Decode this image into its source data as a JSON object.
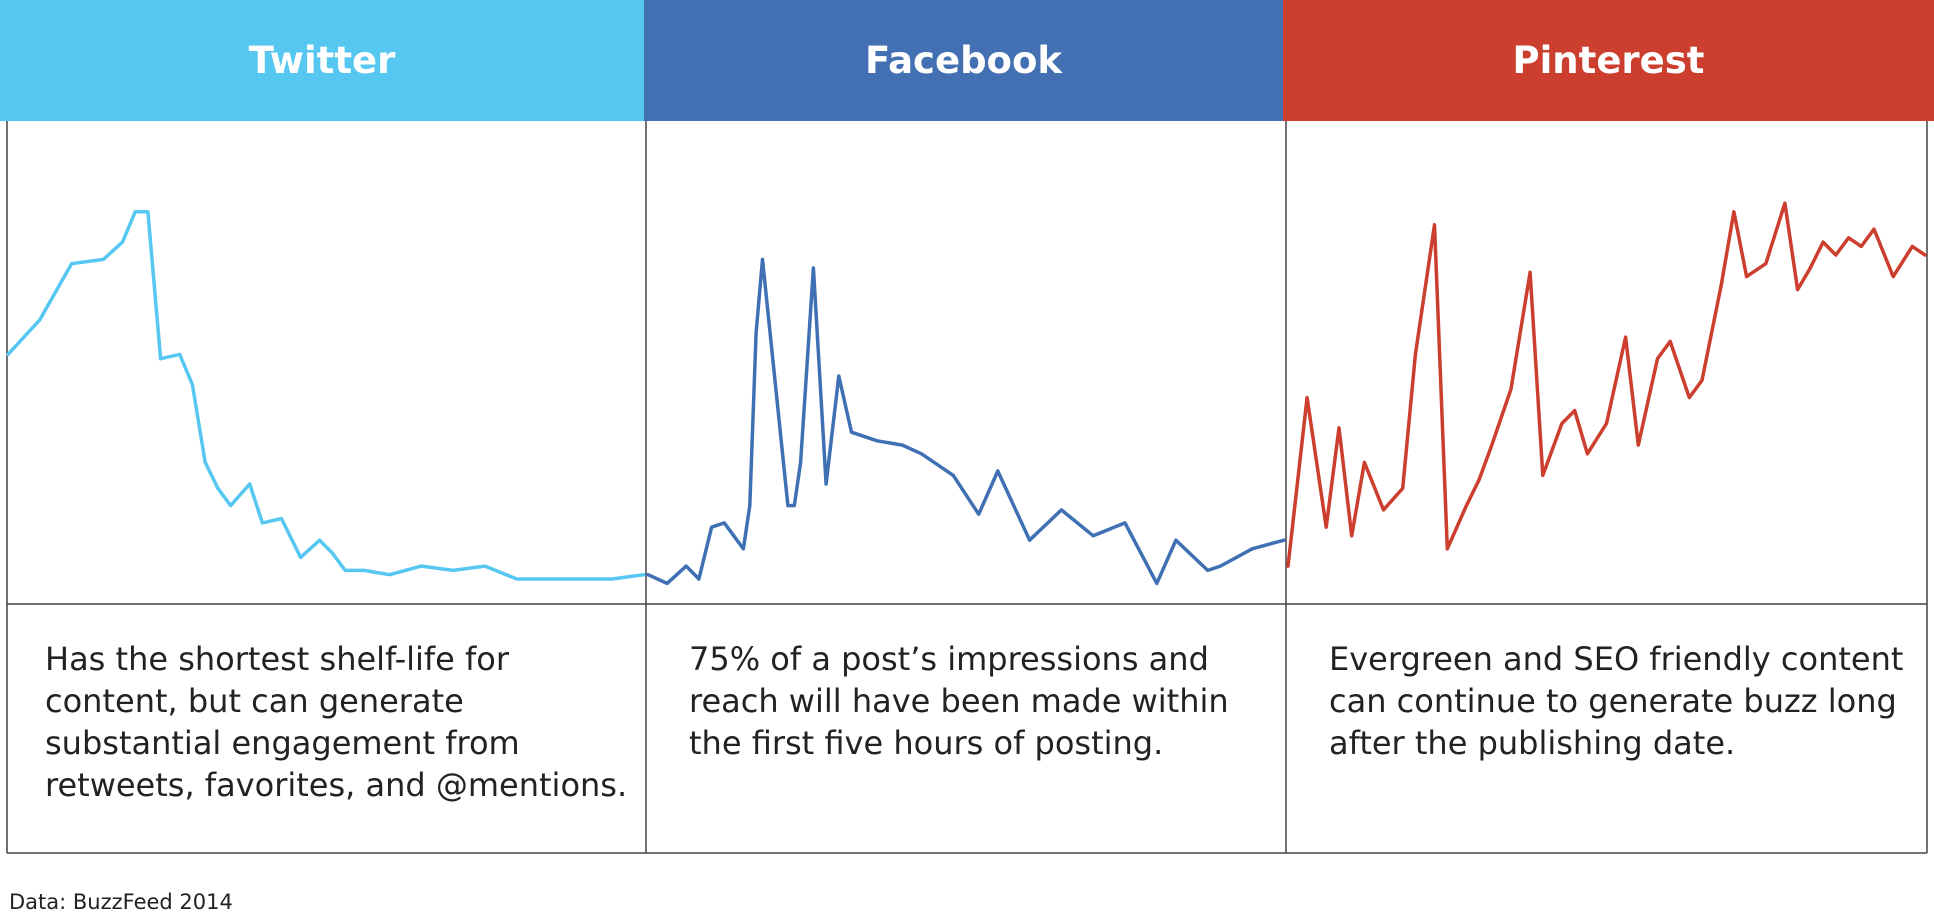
{
  "source": "Data: BuzzFeed 2014",
  "chart_data": [
    {
      "type": "line",
      "title": "Twitter",
      "color": "#56c7f1",
      "description": "Has the shortest shelf-life for content, but can generate substantial engagement from retweets, favorites, and @mentions.",
      "x": [
        0,
        5,
        10,
        15,
        18,
        20,
        22,
        24,
        27,
        29,
        31,
        33,
        35,
        38,
        40,
        43,
        46,
        49,
        51,
        53,
        56,
        60,
        65,
        70,
        75,
        80,
        85,
        90,
        95,
        100
      ],
      "values": [
        55,
        63,
        76,
        77,
        81,
        88,
        88,
        54,
        55,
        48,
        30,
        24,
        20,
        25,
        16,
        17,
        8,
        12,
        9,
        5,
        5,
        4,
        6,
        5,
        6,
        3,
        3,
        3,
        3,
        4
      ],
      "ylim": [
        0,
        100
      ],
      "grid": false
    },
    {
      "type": "line",
      "title": "Facebook",
      "color": "#4070b4",
      "description": "75% of a post’s impressions and reach will have been made within the first five hours of posting.",
      "x": [
        0,
        3,
        6,
        8,
        10,
        12,
        15,
        16,
        17,
        18,
        22,
        23,
        24,
        26,
        28,
        30,
        32,
        36,
        40,
        43,
        45,
        48,
        52,
        55,
        60,
        65,
        70,
        75,
        80,
        83,
        88,
        90,
        95,
        100
      ],
      "values": [
        4,
        2,
        6,
        3,
        15,
        16,
        10,
        20,
        60,
        77,
        20,
        20,
        30,
        75,
        25,
        50,
        37,
        35,
        34,
        32,
        30,
        27,
        18,
        28,
        12,
        19,
        13,
        16,
        2,
        12,
        5,
        6,
        10,
        12
      ],
      "ylim": [
        0,
        100
      ],
      "grid": false
    },
    {
      "type": "line",
      "title": "Pinterest",
      "color": "#cc3e2e",
      "description": "Evergreen and SEO friendly content can continue to generate buzz long after the publishing date.",
      "x": [
        0,
        3,
        6,
        8,
        10,
        12,
        15,
        18,
        20,
        23,
        25,
        28,
        30,
        32,
        35,
        38,
        40,
        43,
        45,
        47,
        50,
        53,
        55,
        58,
        60,
        63,
        65,
        68,
        70,
        72,
        75,
        78,
        80,
        82,
        84,
        86,
        88,
        90,
        92,
        95,
        98,
        100
      ],
      "values": [
        6,
        45,
        15,
        38,
        13,
        30,
        19,
        24,
        55,
        85,
        10,
        20,
        26,
        34,
        47,
        74,
        27,
        39,
        42,
        32,
        39,
        59,
        34,
        54,
        58,
        45,
        49,
        71,
        88,
        73,
        76,
        90,
        70,
        75,
        81,
        78,
        82,
        80,
        84,
        73,
        80,
        78
      ],
      "ylim": [
        0,
        100
      ],
      "grid": false
    }
  ]
}
